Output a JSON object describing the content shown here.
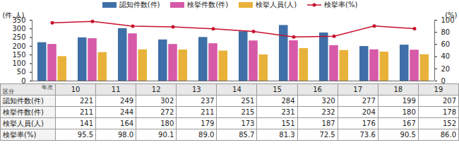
{
  "chart_data": {
    "type": "bar",
    "categories": [
      "10",
      "11",
      "12",
      "13",
      "14",
      "15",
      "16",
      "17",
      "18",
      "19"
    ],
    "series": [
      {
        "name": "認知件数(件)",
        "color": "#3f6fa8",
        "values": [
          221,
          249,
          302,
          237,
          251,
          284,
          320,
          277,
          199,
          207
        ]
      },
      {
        "name": "検挙件数(件)",
        "color": "#d65aa8",
        "values": [
          211,
          244,
          272,
          211,
          215,
          231,
          232,
          204,
          180,
          178
        ]
      },
      {
        "name": "検挙人員(人)",
        "color": "#e8b23a",
        "values": [
          141,
          164,
          180,
          179,
          173,
          151,
          187,
          176,
          167,
          152
        ]
      },
      {
        "name": "検挙率(%)",
        "color": "#c8102e",
        "type": "line",
        "marker": "circle",
        "axis": "y2",
        "values": [
          95.5,
          98.0,
          90.1,
          89.0,
          85.7,
          81.3,
          72.5,
          73.6,
          90.5,
          86.0
        ],
        "value_labels": [
          "95.5",
          "98.0",
          "90.1",
          "89.0",
          "85.7",
          "81.3",
          "72.5",
          "73.6",
          "90.5",
          "86.0"
        ]
      }
    ],
    "ylabel": "(件,人)",
    "y2label": "(%)",
    "ylim": [
      0,
      350
    ],
    "yticks": [
      0,
      50,
      100,
      150,
      200,
      250,
      300,
      350
    ],
    "y2lim": [
      0,
      100
    ],
    "y2ticks": [
      0,
      20,
      40,
      60,
      80,
      100
    ],
    "tick_labels": "y",
    "legend": "top",
    "row_header": "区分",
    "column_header": "年次"
  }
}
